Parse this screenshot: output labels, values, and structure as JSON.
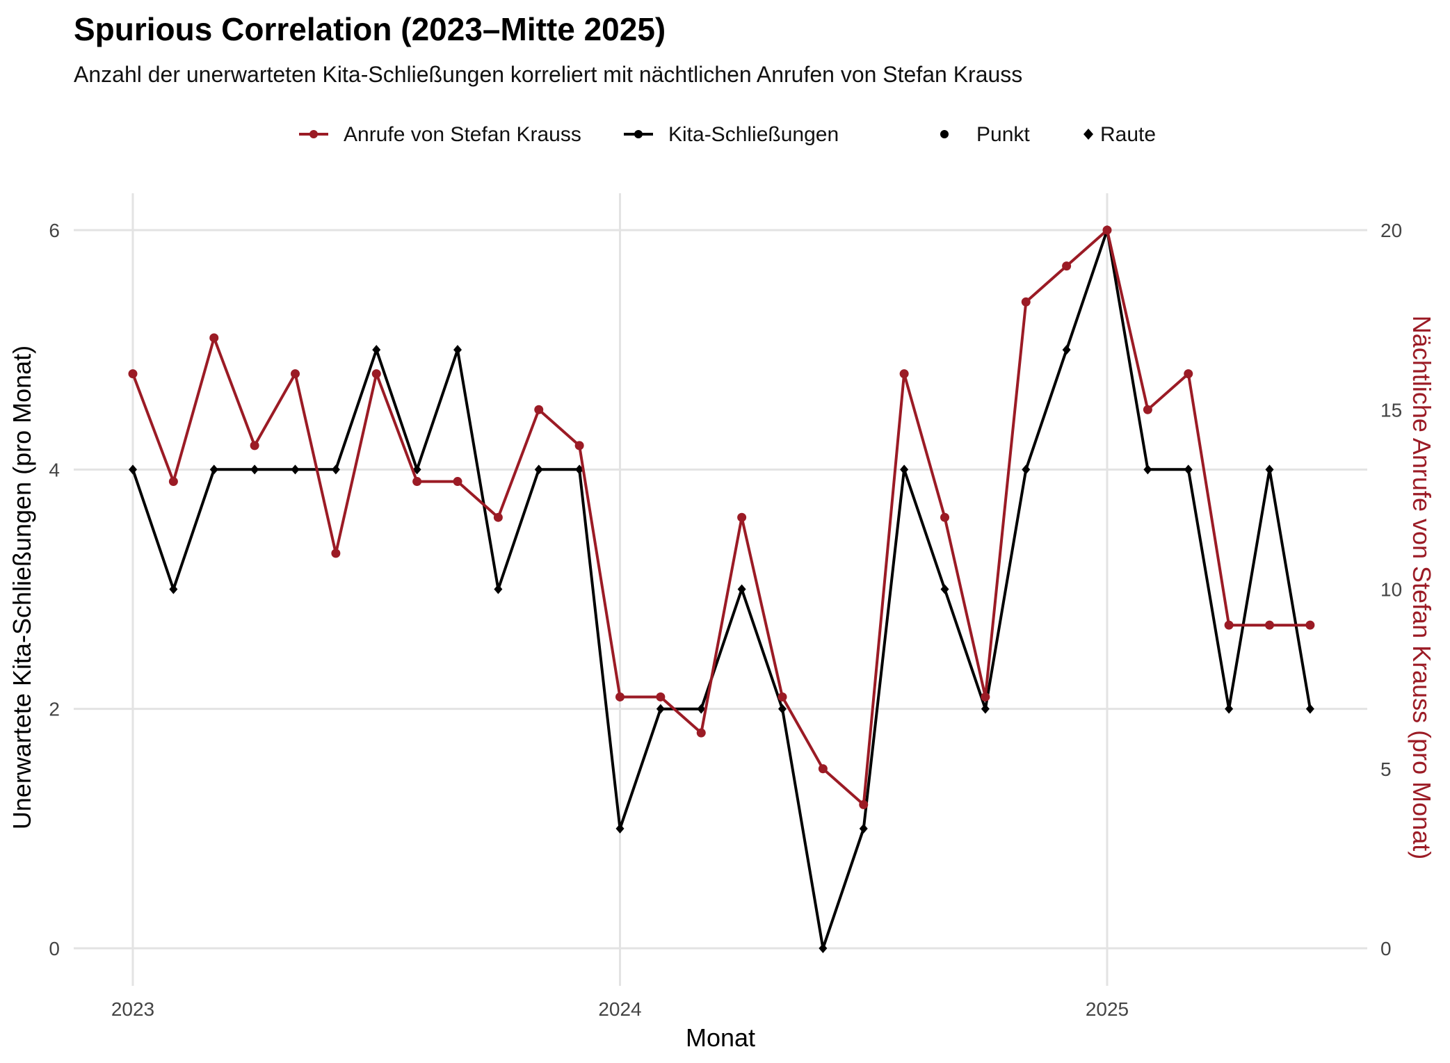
{
  "chart_data": {
    "type": "line",
    "title": "Spurious Correlation (2023–Mitte 2025)",
    "subtitle": "Anzahl der unerwarteten Kita-Schließungen korreliert mit nächtlichen Anrufen von Stefan Krauss",
    "xlabel": "Monat",
    "ylabel_left": "Unerwartete Kita-Schließungen (pro Monat)",
    "ylabel_right": "Nächtliche Anrufe von Stefan Krauss (pro Monat)",
    "x_ticks": [
      "2023",
      "2024",
      "2025"
    ],
    "y_left_ticks": [
      "0",
      "2",
      "4",
      "6"
    ],
    "y_right_ticks": [
      "0",
      "5",
      "10",
      "15",
      "20"
    ],
    "ylim_left": [
      0,
      6
    ],
    "ylim_right": [
      0,
      20
    ],
    "legend": [
      {
        "label": "Anrufe von Stefan Krauss",
        "kind": "line-point",
        "color": "#9b1b25"
      },
      {
        "label": "Kita-Schließungen",
        "kind": "line-point",
        "color": "#000000"
      },
      {
        "label": "Punkt",
        "kind": "point",
        "color": "#000000"
      },
      {
        "label": "Raute",
        "kind": "diamond",
        "color": "#000000"
      }
    ],
    "months": [
      "2023-01",
      "2023-02",
      "2023-03",
      "2023-04",
      "2023-05",
      "2023-06",
      "2023-07",
      "2023-08",
      "2023-09",
      "2023-10",
      "2023-11",
      "2023-12",
      "2024-01",
      "2024-02",
      "2024-03",
      "2024-04",
      "2024-05",
      "2024-06",
      "2024-07",
      "2024-08",
      "2024-09",
      "2024-10",
      "2024-11",
      "2024-12",
      "2025-01",
      "2025-02",
      "2025-03",
      "2025-04",
      "2025-05",
      "2025-06"
    ],
    "series": [
      {
        "name": "Kita-Schließungen",
        "axis": "left",
        "color": "#000000",
        "marker": "diamond",
        "values": [
          4,
          3,
          4,
          4,
          4,
          4,
          5,
          4,
          5,
          3,
          4,
          4,
          1,
          2,
          2,
          3,
          2,
          0,
          1,
          4,
          3,
          2,
          4,
          5,
          6,
          4,
          4,
          2,
          4,
          2
        ]
      },
      {
        "name": "Anrufe von Stefan Krauss",
        "axis": "right",
        "color": "#9b1b25",
        "marker": "point",
        "values": [
          16,
          13,
          17,
          14,
          16,
          11,
          16,
          13,
          13,
          12,
          15,
          14,
          7,
          7,
          6,
          12,
          7,
          5,
          4,
          16,
          12,
          7,
          18,
          19,
          20,
          15,
          16,
          9,
          9,
          9
        ]
      }
    ]
  }
}
